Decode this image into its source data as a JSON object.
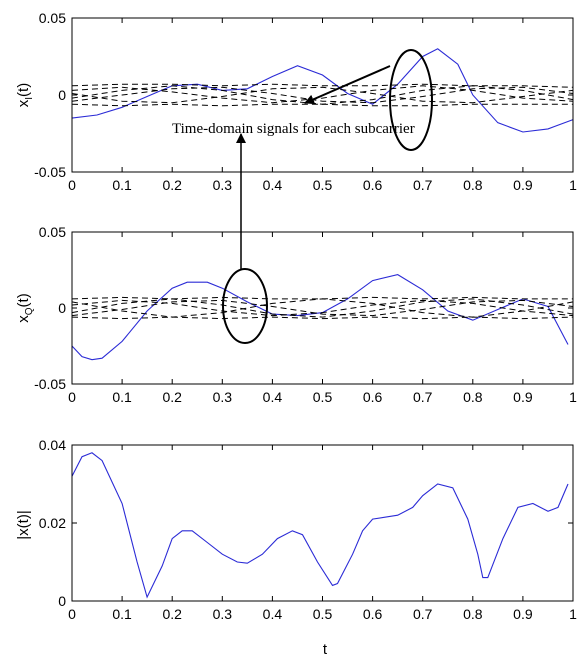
{
  "colors": {
    "signal": "#2b2bd6",
    "subcarrier": "#000000",
    "axis": "#000000"
  },
  "annotation": {
    "text": "Time-domain signals for each subcarrier"
  },
  "chart_data": [
    {
      "type": "line",
      "ylabel_main": "x",
      "ylabel_sub": "I",
      "ylabel_tail": "(t)",
      "xlim": [
        0,
        1
      ],
      "ylim": [
        -0.05,
        0.05
      ],
      "xticks": [
        "0",
        "0.1",
        "0.2",
        "0.3",
        "0.4",
        "0.5",
        "0.6",
        "0.7",
        "0.8",
        "0.9",
        "1"
      ],
      "yticks": [
        "0.05",
        "0",
        "-0.05"
      ],
      "ytick_values": [
        0.05,
        0,
        -0.05
      ],
      "series": [
        {
          "style": "solid-blue",
          "x": [
            0,
            0.05,
            0.1,
            0.15,
            0.2,
            0.25,
            0.3,
            0.35,
            0.4,
            0.45,
            0.5,
            0.55,
            0.6,
            0.65,
            0.7,
            0.73,
            0.77,
            0.8,
            0.85,
            0.9,
            0.95,
            1.0
          ],
          "y": [
            -0.015,
            -0.013,
            -0.008,
            -0.001,
            0.006,
            0.007,
            0.003,
            0.004,
            0.012,
            0.019,
            0.013,
            0.001,
            -0.006,
            0.007,
            0.025,
            0.03,
            0.02,
            0.0,
            -0.018,
            -0.024,
            -0.022,
            -0.016
          ]
        },
        {
          "style": "dashed-black",
          "x": [
            0,
            0.1,
            0.2,
            0.3,
            0.4,
            0.5,
            0.6,
            0.7,
            0.8,
            0.9,
            1.0
          ],
          "y": [
            0.006,
            0.007,
            0.007,
            0.006,
            0.007,
            0.006,
            0.006,
            0.007,
            0.006,
            0.006,
            0.005
          ]
        },
        {
          "style": "dashed-black",
          "x": [
            0,
            0.1,
            0.2,
            0.3,
            0.4,
            0.5,
            0.6,
            0.7,
            0.8,
            0.9,
            1.0
          ],
          "y": [
            -0.006,
            -0.007,
            -0.006,
            -0.007,
            -0.006,
            -0.006,
            -0.007,
            -0.007,
            -0.006,
            -0.006,
            -0.006
          ]
        },
        {
          "style": "dashed-black",
          "x": [
            0,
            0.1,
            0.2,
            0.3,
            0.4,
            0.5,
            0.6,
            0.7,
            0.8,
            0.9,
            1.0
          ],
          "y": [
            0.003,
            0.005,
            0.002,
            -0.002,
            -0.005,
            -0.002,
            0.003,
            0.006,
            0.003,
            -0.002,
            -0.004
          ]
        },
        {
          "style": "dashed-black",
          "x": [
            0,
            0.1,
            0.2,
            0.3,
            0.4,
            0.5,
            0.6,
            0.7,
            0.8,
            0.9,
            1.0
          ],
          "y": [
            -0.004,
            0.0,
            0.004,
            0.005,
            0.001,
            -0.004,
            -0.005,
            -0.001,
            0.004,
            0.005,
            0.001
          ]
        },
        {
          "style": "dashed-black",
          "x": [
            0,
            0.1,
            0.2,
            0.3,
            0.4,
            0.5,
            0.6,
            0.7,
            0.8,
            0.9,
            1.0
          ],
          "y": [
            0.001,
            -0.004,
            -0.005,
            -0.001,
            0.004,
            0.005,
            0.001,
            -0.004,
            -0.005,
            -0.001,
            0.003
          ]
        },
        {
          "style": "dashed-black",
          "x": [
            0,
            0.1,
            0.2,
            0.3,
            0.4,
            0.5,
            0.6,
            0.7,
            0.8,
            0.9,
            1.0
          ],
          "y": [
            -0.002,
            0.003,
            0.006,
            0.003,
            -0.003,
            -0.006,
            -0.003,
            0.003,
            0.006,
            0.003,
            -0.003
          ]
        }
      ]
    },
    {
      "type": "line",
      "ylabel_main": "x",
      "ylabel_sub": "Q",
      "ylabel_tail": "(t)",
      "xlim": [
        0,
        1
      ],
      "ylim": [
        -0.05,
        0.05
      ],
      "xticks": [
        "0",
        "0.1",
        "0.2",
        "0.3",
        "0.4",
        "0.5",
        "0.6",
        "0.7",
        "0.8",
        "0.9",
        "1"
      ],
      "yticks": [
        "0.05",
        "0",
        "-0.05"
      ],
      "ytick_values": [
        0.05,
        0,
        -0.05
      ],
      "series": [
        {
          "style": "solid-blue",
          "x": [
            0,
            0.02,
            0.04,
            0.06,
            0.1,
            0.15,
            0.2,
            0.23,
            0.27,
            0.3,
            0.35,
            0.4,
            0.45,
            0.5,
            0.55,
            0.6,
            0.65,
            0.7,
            0.75,
            0.8,
            0.85,
            0.9,
            0.95,
            0.99
          ],
          "y": [
            -0.025,
            -0.032,
            -0.034,
            -0.033,
            -0.022,
            -0.002,
            0.013,
            0.017,
            0.017,
            0.013,
            0.004,
            -0.004,
            -0.005,
            -0.003,
            0.006,
            0.018,
            0.022,
            0.012,
            -0.002,
            -0.008,
            -0.001,
            0.006,
            0.001,
            -0.024
          ]
        },
        {
          "style": "dashed-black",
          "x": [
            0,
            0.1,
            0.2,
            0.3,
            0.4,
            0.5,
            0.6,
            0.7,
            0.8,
            0.9,
            1.0
          ],
          "y": [
            0.006,
            0.007,
            0.006,
            0.007,
            0.006,
            0.006,
            0.007,
            0.006,
            0.007,
            0.006,
            0.006
          ]
        },
        {
          "style": "dashed-black",
          "x": [
            0,
            0.1,
            0.2,
            0.3,
            0.4,
            0.5,
            0.6,
            0.7,
            0.8,
            0.9,
            1.0
          ],
          "y": [
            -0.006,
            -0.007,
            -0.006,
            -0.007,
            -0.006,
            -0.007,
            -0.006,
            -0.007,
            -0.006,
            -0.007,
            -0.006
          ]
        },
        {
          "style": "dashed-black",
          "x": [
            0,
            0.1,
            0.2,
            0.3,
            0.4,
            0.5,
            0.6,
            0.7,
            0.8,
            0.9,
            1.0
          ],
          "y": [
            0.002,
            0.005,
            0.003,
            -0.002,
            -0.005,
            -0.003,
            0.002,
            0.005,
            0.003,
            -0.002,
            -0.005
          ]
        },
        {
          "style": "dashed-black",
          "x": [
            0,
            0.1,
            0.2,
            0.3,
            0.4,
            0.5,
            0.6,
            0.7,
            0.8,
            0.9,
            1.0
          ],
          "y": [
            -0.005,
            -0.001,
            0.004,
            0.005,
            0.001,
            -0.004,
            -0.005,
            -0.001,
            0.004,
            0.005,
            0.001
          ]
        },
        {
          "style": "dashed-black",
          "x": [
            0,
            0.1,
            0.2,
            0.3,
            0.4,
            0.5,
            0.6,
            0.7,
            0.8,
            0.9,
            1.0
          ],
          "y": [
            0.004,
            -0.002,
            -0.006,
            -0.003,
            0.003,
            0.006,
            0.003,
            -0.003,
            -0.006,
            -0.002,
            0.004
          ]
        },
        {
          "style": "dashed-black",
          "x": [
            0,
            0.1,
            0.2,
            0.3,
            0.4,
            0.5,
            0.6,
            0.7,
            0.8,
            0.9,
            1.0
          ],
          "y": [
            -0.003,
            0.003,
            0.006,
            0.002,
            -0.004,
            -0.006,
            -0.002,
            0.004,
            0.006,
            0.002,
            -0.004
          ]
        }
      ]
    },
    {
      "type": "line",
      "ylabel": "|x(t)|",
      "xlabel": "t",
      "xlim": [
        0,
        1
      ],
      "ylim": [
        0,
        0.04
      ],
      "xticks": [
        "0",
        "0.1",
        "0.2",
        "0.3",
        "0.4",
        "0.5",
        "0.6",
        "0.7",
        "0.8",
        "0.9",
        "1"
      ],
      "yticks": [
        "0.04",
        "0.02",
        "0"
      ],
      "ytick_values": [
        0.04,
        0.02,
        0
      ],
      "series": [
        {
          "style": "solid-blue",
          "x": [
            0,
            0.02,
            0.04,
            0.06,
            0.1,
            0.13,
            0.15,
            0.18,
            0.2,
            0.22,
            0.24,
            0.27,
            0.3,
            0.33,
            0.35,
            0.38,
            0.41,
            0.44,
            0.46,
            0.49,
            0.52,
            0.53,
            0.56,
            0.58,
            0.6,
            0.65,
            0.68,
            0.7,
            0.73,
            0.76,
            0.79,
            0.81,
            0.82,
            0.83,
            0.86,
            0.89,
            0.92,
            0.95,
            0.97,
            0.99
          ],
          "y": [
            0.032,
            0.037,
            0.038,
            0.036,
            0.025,
            0.01,
            0.001,
            0.009,
            0.016,
            0.018,
            0.018,
            0.015,
            0.012,
            0.01,
            0.0097,
            0.012,
            0.016,
            0.018,
            0.017,
            0.01,
            0.004,
            0.0045,
            0.012,
            0.018,
            0.021,
            0.022,
            0.024,
            0.027,
            0.03,
            0.029,
            0.021,
            0.012,
            0.006,
            0.006,
            0.016,
            0.024,
            0.025,
            0.023,
            0.024,
            0.03
          ]
        }
      ]
    }
  ]
}
